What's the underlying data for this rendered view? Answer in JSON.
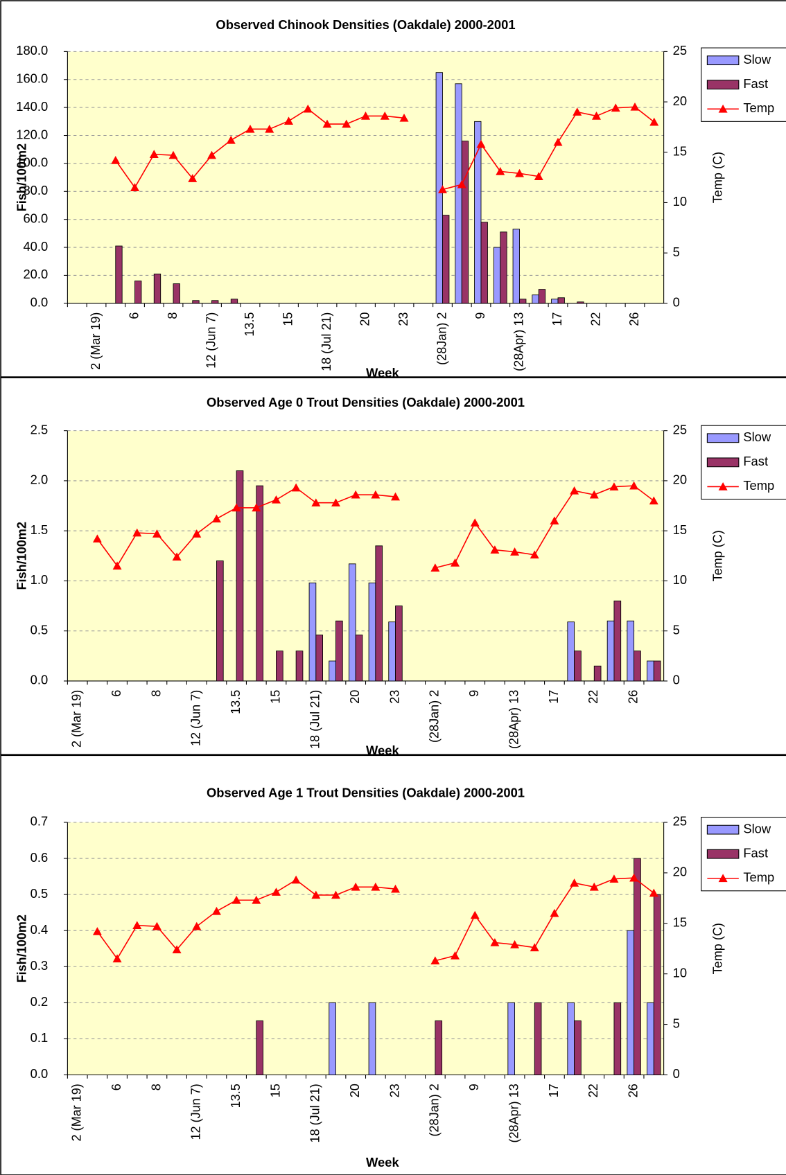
{
  "chart_data": [
    {
      "type": "bar-line",
      "title": "Observed Chinook Densities (Oakdale) 2000-2001",
      "x_label": "Week",
      "y_label": "Fish/100m2",
      "y2_label": "Temp (C)",
      "categories": [
        null,
        "2 (Mar 19)",
        null,
        "6",
        null,
        "8",
        null,
        "12 (Jun 7)",
        null,
        "13.5",
        null,
        "15",
        null,
        "18 (Jul 21)",
        null,
        "20",
        null,
        "23",
        null,
        "(28Jan) 2",
        null,
        "9",
        null,
        "(28Apr) 13",
        null,
        "17",
        null,
        "22",
        null,
        "26",
        null
      ],
      "series": [
        {
          "name": "Slow",
          "color": "#9999ff",
          "values": [
            null,
            null,
            null,
            null,
            null,
            null,
            null,
            null,
            null,
            null,
            null,
            null,
            null,
            null,
            null,
            null,
            null,
            null,
            null,
            165,
            157,
            130,
            40,
            53,
            6,
            3,
            null,
            null,
            null,
            null,
            null
          ]
        },
        {
          "name": "Fast",
          "color": "#993366",
          "values": [
            null,
            null,
            41,
            16,
            21,
            14,
            2,
            2,
            3,
            null,
            null,
            null,
            null,
            null,
            null,
            null,
            null,
            null,
            null,
            63,
            116,
            58,
            51,
            3,
            10,
            4,
            1,
            null,
            null,
            null,
            null
          ]
        },
        {
          "name": "Temp",
          "color": "#ff0000",
          "type": "line",
          "axis": "y2",
          "values": [
            null,
            null,
            14.2,
            11.5,
            14.8,
            14.7,
            12.4,
            14.7,
            16.2,
            17.3,
            17.3,
            18.1,
            19.3,
            17.8,
            17.8,
            18.6,
            18.6,
            18.4,
            null,
            11.3,
            11.8,
            15.8,
            13.1,
            12.9,
            12.6,
            16,
            19,
            18.6,
            19.4,
            19.5,
            18
          ]
        }
      ],
      "ylim": [
        0,
        180
      ],
      "yticks": [
        {
          "value": 0,
          "label": "0.0"
        },
        {
          "value": 20,
          "label": "20.0"
        },
        {
          "value": 40,
          "label": "40.0"
        },
        {
          "value": 60,
          "label": "60.0"
        },
        {
          "value": 80,
          "label": "80.0"
        },
        {
          "value": 100,
          "label": "100.0"
        },
        {
          "value": 120,
          "label": "120.0"
        },
        {
          "value": 140,
          "label": "140.0"
        },
        {
          "value": 160,
          "label": "160.0"
        },
        {
          "value": 180,
          "label": "180.0"
        }
      ],
      "y2lim": [
        0,
        25
      ],
      "y2ticks": [
        0,
        5,
        10,
        15,
        20,
        25
      ],
      "grid": true,
      "legend": "right"
    },
    {
      "type": "bar-line",
      "title": "Observed Age 0 Trout Densities (Oakdale) 2000-2001",
      "x_label": "Week",
      "y_label": "Fish/100m2",
      "y2_label": "Temp (C)",
      "categories": [
        "2 (Mar 19)",
        null,
        "6",
        null,
        "8",
        null,
        "12 (Jun 7)",
        null,
        "13.5",
        null,
        "15",
        null,
        "18 (Jul 21)",
        null,
        "20",
        null,
        "23",
        null,
        "(28Jan) 2",
        null,
        "9",
        null,
        "(28Apr) 13",
        null,
        "17",
        null,
        "22",
        null,
        "26",
        null
      ],
      "series": [
        {
          "name": "Slow",
          "color": "#9999ff",
          "values": [
            null,
            null,
            null,
            null,
            null,
            null,
            null,
            null,
            null,
            null,
            null,
            null,
            0.98,
            0.2,
            1.17,
            0.98,
            0.59,
            null,
            null,
            null,
            null,
            null,
            null,
            null,
            null,
            0.59,
            null,
            0.6,
            0.6,
            0.2
          ]
        },
        {
          "name": "Fast",
          "color": "#993366",
          "values": [
            null,
            null,
            null,
            null,
            null,
            null,
            null,
            1.2,
            2.1,
            1.95,
            0.3,
            0.3,
            0.46,
            0.6,
            0.46,
            1.35,
            0.75,
            null,
            null,
            null,
            null,
            null,
            null,
            null,
            null,
            0.3,
            0.15,
            0.8,
            0.3,
            0.2
          ]
        },
        {
          "name": "Temp",
          "color": "#ff0000",
          "type": "line",
          "axis": "y2",
          "values": [
            null,
            14.2,
            11.5,
            14.8,
            14.7,
            12.4,
            14.7,
            16.2,
            17.3,
            17.3,
            18.1,
            19.3,
            17.8,
            17.8,
            18.6,
            18.6,
            18.4,
            null,
            11.3,
            11.8,
            15.8,
            13.1,
            12.9,
            12.6,
            16,
            19,
            18.6,
            19.4,
            19.5,
            18
          ]
        }
      ],
      "ylim": [
        0,
        2.5
      ],
      "yticks": [
        {
          "value": 0,
          "label": "0.0"
        },
        0.5,
        {
          "value": 1,
          "label": "1.0"
        },
        1.5,
        {
          "value": 2,
          "label": "2.0"
        },
        2.5
      ],
      "y2lim": [
        0,
        25
      ],
      "y2ticks": [
        0,
        5,
        10,
        15,
        20,
        25
      ],
      "grid": true,
      "legend": "right"
    },
    {
      "type": "bar-line",
      "title": "Observed Age 1 Trout Densities (Oakdale) 2000-2001",
      "x_label": "Week",
      "y_label": "Fish/100m2",
      "y2_label": "Temp (C)",
      "categories": [
        "2 (Mar 19)",
        null,
        "6",
        null,
        "8",
        null,
        "12 (Jun 7)",
        null,
        "13.5",
        null,
        "15",
        null,
        "18 (Jul 21)",
        null,
        "20",
        null,
        "23",
        null,
        "(28Jan) 2",
        null,
        "9",
        null,
        "(28Apr) 13",
        null,
        "17",
        null,
        "22",
        null,
        "26",
        null
      ],
      "series": [
        {
          "name": "Slow",
          "color": "#9999ff",
          "values": [
            null,
            null,
            null,
            null,
            null,
            null,
            null,
            null,
            null,
            null,
            null,
            null,
            null,
            0.2,
            null,
            0.2,
            null,
            null,
            null,
            null,
            null,
            null,
            0.2,
            null,
            null,
            0.2,
            null,
            null,
            0.4,
            0.2
          ]
        },
        {
          "name": "Fast",
          "color": "#993366",
          "values": [
            null,
            null,
            null,
            null,
            null,
            null,
            null,
            null,
            null,
            0.15,
            null,
            null,
            null,
            null,
            null,
            null,
            null,
            null,
            0.15,
            null,
            null,
            null,
            null,
            0.2,
            null,
            0.15,
            null,
            0.2,
            0.6,
            0.5
          ]
        },
        {
          "name": "Temp",
          "color": "#ff0000",
          "type": "line",
          "axis": "y2",
          "values": [
            null,
            14.2,
            11.5,
            14.8,
            14.7,
            12.4,
            14.7,
            16.2,
            17.3,
            17.3,
            18.1,
            19.3,
            17.8,
            17.8,
            18.6,
            18.6,
            18.4,
            null,
            11.3,
            11.8,
            15.8,
            13.1,
            12.9,
            12.6,
            16,
            19,
            18.6,
            19.4,
            19.5,
            18
          ]
        }
      ],
      "ylim": [
        0,
        0.7
      ],
      "yticks": [
        {
          "value": 0,
          "label": "0.0"
        },
        0.1,
        0.2,
        0.3,
        0.4,
        0.5,
        0.6,
        0.7
      ],
      "y2lim": [
        0,
        25
      ],
      "y2ticks": [
        0,
        5,
        10,
        15,
        20,
        25
      ],
      "grid": true,
      "legend": "right"
    }
  ]
}
